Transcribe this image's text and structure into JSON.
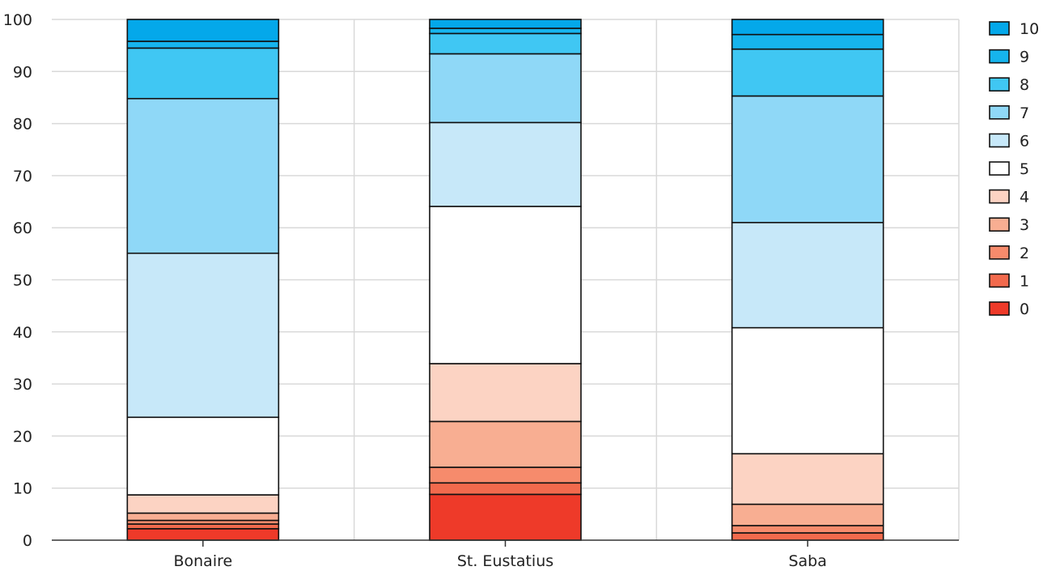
{
  "chart_data": {
    "type": "bar",
    "stacked": true,
    "title": "",
    "xlabel": "",
    "ylabel": "",
    "ylim": [
      0,
      100
    ],
    "yticks": [
      0,
      10,
      20,
      30,
      40,
      50,
      60,
      70,
      80,
      90,
      100
    ],
    "grid": true,
    "legend_position": "right",
    "categories": [
      "Bonaire",
      "St. Eustatius",
      "Saba"
    ],
    "series": [
      {
        "name": "0",
        "color": "#ee3a29",
        "values": [
          2.2,
          8.8,
          0.0
        ]
      },
      {
        "name": "1",
        "color": "#f26a4d",
        "values": [
          0.9,
          2.2,
          1.4
        ]
      },
      {
        "name": "2",
        "color": "#f68b6c",
        "values": [
          0.7,
          3.0,
          1.4
        ]
      },
      {
        "name": "3",
        "color": "#f8ae92",
        "values": [
          1.4,
          8.8,
          4.1
        ]
      },
      {
        "name": "4",
        "color": "#fcd3c3",
        "values": [
          3.5,
          11.1,
          9.7
        ]
      },
      {
        "name": "5",
        "color": "#ffffff",
        "values": [
          14.9,
          30.2,
          24.2
        ]
      },
      {
        "name": "6",
        "color": "#c7e8f9",
        "values": [
          31.5,
          16.1,
          20.2
        ]
      },
      {
        "name": "7",
        "color": "#8fd8f7",
        "values": [
          29.7,
          13.2,
          24.3
        ]
      },
      {
        "name": "8",
        "color": "#40c7f3",
        "values": [
          9.7,
          3.9,
          9.0
        ]
      },
      {
        "name": "9",
        "color": "#16b4ed",
        "values": [
          1.3,
          1.0,
          2.8
        ]
      },
      {
        "name": "10",
        "color": "#04a8ea",
        "values": [
          4.2,
          1.7,
          2.9
        ]
      }
    ]
  }
}
